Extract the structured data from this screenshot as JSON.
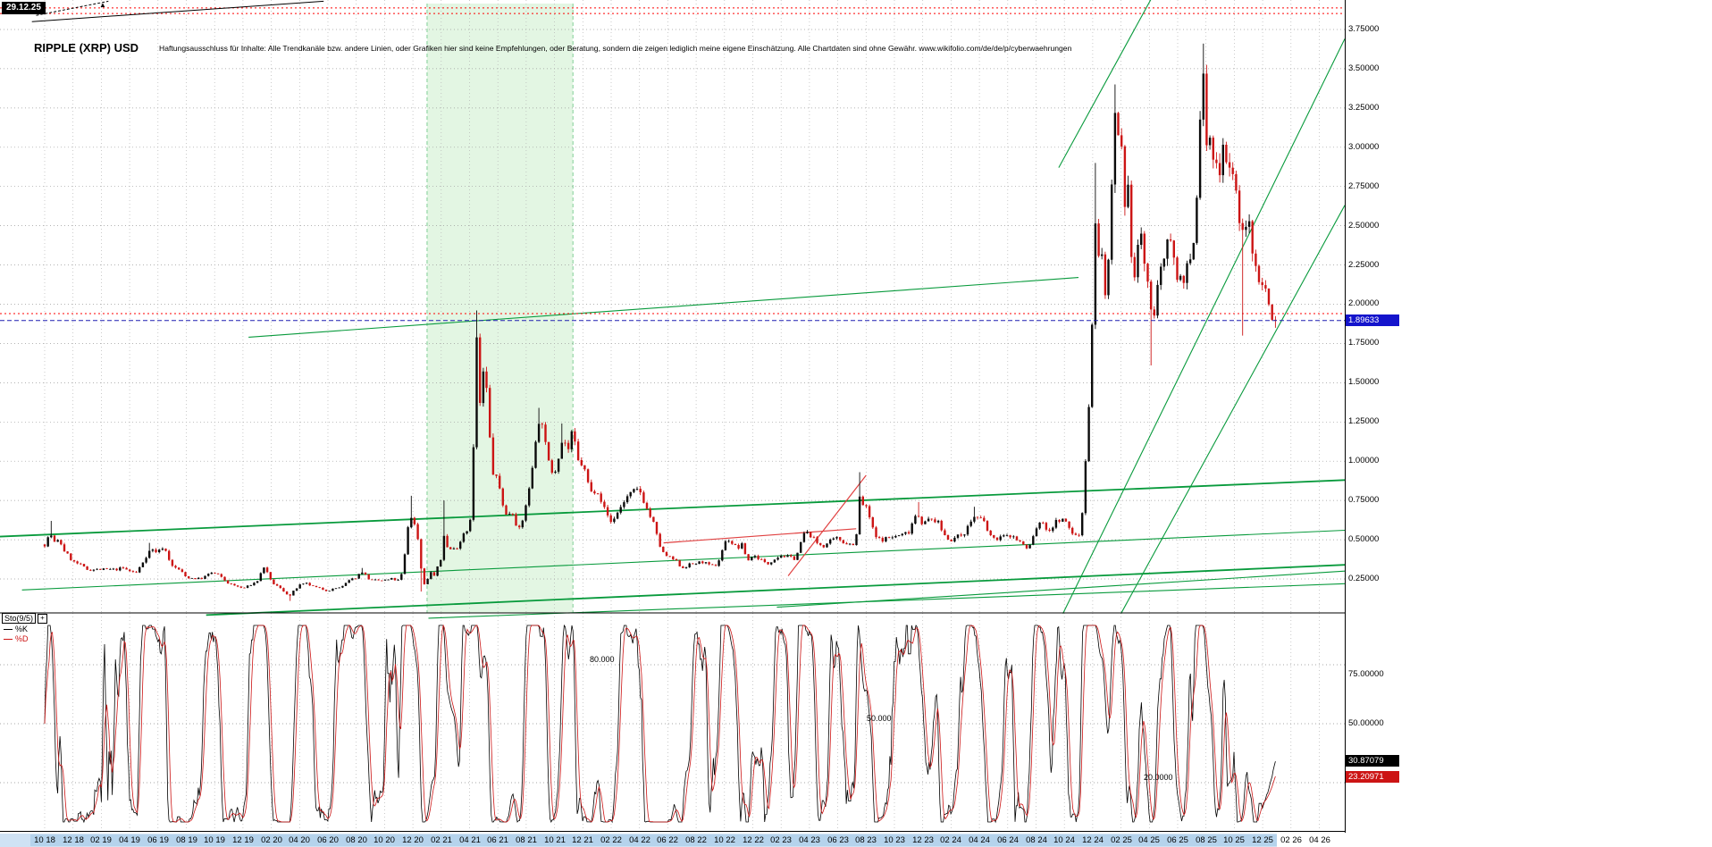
{
  "header": {
    "date_box": "29.12.25",
    "title": "RIPPLE (XRP) USD",
    "disclaimer": "Haftungsausschluss für Inhalte: Alle Trendkanäle bzw. andere Linien, oder Grafiken hier sind keine Empfehlungen, oder Beratung, sondern die zeigen lediglich meine eigene Einschätzung. Alle Chartdaten sind ohne Gewähr.  www.wikifolio.com/de/de/p/cyberwaehrungen"
  },
  "price_axis": {
    "current": "1.89633"
  },
  "indicator_panel": {
    "name": "Sto(9/5)",
    "expand_button": "+",
    "k_label": "%K",
    "d_label": "%D",
    "k_value": "30.87079",
    "d_value": "23.20971",
    "level_labels": [
      "80.000",
      "50.000",
      "20.0000"
    ],
    "right_labels": [
      "75.00000",
      "50.00000"
    ]
  },
  "chart_data": {
    "type": "candlestick",
    "title": "RIPPLE (XRP) USD",
    "x_unit": "months since Oct 2018, ticks every 2 months",
    "x_ticks": [
      "10 18",
      "12 18",
      "02 19",
      "04 19",
      "06 19",
      "08 19",
      "10 19",
      "12 19",
      "02 20",
      "04 20",
      "06 20",
      "08 20",
      "10 20",
      "12 20",
      "02 21",
      "04 21",
      "06 21",
      "08 21",
      "10 21",
      "12 21",
      "02 22",
      "04 22",
      "06 22",
      "08 22",
      "10 22",
      "12 22",
      "02 23",
      "04 23",
      "06 23",
      "08 23",
      "10 23",
      "12 23",
      "02 24",
      "04 24",
      "06 24",
      "08 24",
      "10 24",
      "12 24",
      "02 25",
      "04 25",
      "06 25",
      "08 25",
      "10 25",
      "12 25",
      "02 26",
      "04 26"
    ],
    "future_ticks_from_index": 44,
    "y_ticks": [
      3.75,
      3.5,
      3.25,
      3.0,
      2.75,
      2.5,
      2.25,
      2.0,
      1.75,
      1.5,
      1.25,
      1.0,
      0.75,
      0.5,
      0.25
    ],
    "ylim": [
      0,
      3.94
    ],
    "current_price": 1.89633,
    "current_date": "29.12.25",
    "price_anchors": [
      [
        0,
        0.47
      ],
      [
        0.4,
        0.54
      ],
      [
        0.8,
        0.46
      ],
      [
        1,
        0.51
      ],
      [
        1.3,
        0.44
      ],
      [
        2,
        0.36
      ],
      [
        2.5,
        0.34
      ],
      [
        3,
        0.31
      ],
      [
        4,
        0.31
      ],
      [
        5,
        0.31
      ],
      [
        5.5,
        0.32
      ],
      [
        6,
        0.3
      ],
      [
        6.5,
        0.29
      ],
      [
        7.2,
        0.4
      ],
      [
        7.5,
        0.44
      ],
      [
        8,
        0.42
      ],
      [
        8.4,
        0.46
      ],
      [
        9,
        0.33
      ],
      [
        9.5,
        0.31
      ],
      [
        10,
        0.26
      ],
      [
        11,
        0.25
      ],
      [
        11.8,
        0.29
      ],
      [
        12.2,
        0.28
      ],
      [
        13,
        0.22
      ],
      [
        14,
        0.19
      ],
      [
        14.5,
        0.21
      ],
      [
        15,
        0.235
      ],
      [
        15.5,
        0.33
      ],
      [
        16,
        0.23
      ],
      [
        16.5,
        0.2
      ],
      [
        17.3,
        0.14
      ],
      [
        17.6,
        0.175
      ],
      [
        18,
        0.21
      ],
      [
        18.5,
        0.22
      ],
      [
        19,
        0.2
      ],
      [
        20,
        0.175
      ],
      [
        20.5,
        0.19
      ],
      [
        21,
        0.2
      ],
      [
        21.5,
        0.24
      ],
      [
        22,
        0.26
      ],
      [
        22.4,
        0.3
      ],
      [
        23,
        0.24
      ],
      [
        24,
        0.24
      ],
      [
        24.5,
        0.25
      ],
      [
        25,
        0.24
      ],
      [
        25.3,
        0.3
      ],
      [
        25.6,
        0.55
      ],
      [
        25.8,
        0.67
      ],
      [
        26,
        0.62
      ],
      [
        26.3,
        0.55
      ],
      [
        26.6,
        0.3
      ],
      [
        26.8,
        0.22
      ],
      [
        27,
        0.24
      ],
      [
        27.3,
        0.3
      ],
      [
        27.5,
        0.27
      ],
      [
        28,
        0.38
      ],
      [
        28.1,
        0.6
      ],
      [
        28.3,
        0.46
      ],
      [
        28.6,
        0.44
      ],
      [
        29,
        0.44
      ],
      [
        29.3,
        0.48
      ],
      [
        29.6,
        0.55
      ],
      [
        30,
        0.57
      ],
      [
        30.2,
        0.88
      ],
      [
        30.4,
        1.4
      ],
      [
        30.5,
        1.8
      ],
      [
        30.7,
        1.3
      ],
      [
        30.9,
        1.57
      ],
      [
        31,
        1.56
      ],
      [
        31.2,
        1.45
      ],
      [
        31.5,
        1.05
      ],
      [
        31.7,
        0.9
      ],
      [
        32,
        0.88
      ],
      [
        32.3,
        0.75
      ],
      [
        32.6,
        0.65
      ],
      [
        33,
        0.69
      ],
      [
        33.3,
        0.6
      ],
      [
        33.6,
        0.55
      ],
      [
        34,
        0.74
      ],
      [
        34.3,
        0.85
      ],
      [
        34.6,
        1.1
      ],
      [
        34.8,
        1.25
      ],
      [
        35,
        1.19
      ],
      [
        35.2,
        1.3
      ],
      [
        35.4,
        1.05
      ],
      [
        35.7,
        0.95
      ],
      [
        36,
        0.93
      ],
      [
        36.3,
        1.05
      ],
      [
        36.6,
        1.15
      ],
      [
        37,
        1.07
      ],
      [
        37.3,
        1.2
      ],
      [
        37.6,
        1.0
      ],
      [
        38,
        0.98
      ],
      [
        38.3,
        0.88
      ],
      [
        38.6,
        0.8
      ],
      [
        39,
        0.83
      ],
      [
        39.5,
        0.7
      ],
      [
        40,
        0.61
      ],
      [
        40.5,
        0.68
      ],
      [
        41,
        0.76
      ],
      [
        41.5,
        0.8
      ],
      [
        42,
        0.82
      ],
      [
        42.5,
        0.7
      ],
      [
        43,
        0.6
      ],
      [
        43.3,
        0.5
      ],
      [
        43.6,
        0.42
      ],
      [
        44,
        0.39
      ],
      [
        44.5,
        0.37
      ],
      [
        45,
        0.32
      ],
      [
        45.5,
        0.34
      ],
      [
        46,
        0.35
      ],
      [
        46.5,
        0.36
      ],
      [
        47,
        0.33
      ],
      [
        47.5,
        0.34
      ],
      [
        48,
        0.48
      ],
      [
        48.3,
        0.5
      ],
      [
        48.7,
        0.46
      ],
      [
        49,
        0.45
      ],
      [
        49.3,
        0.47
      ],
      [
        49.6,
        0.36
      ],
      [
        50,
        0.4
      ],
      [
        50.5,
        0.38
      ],
      [
        51,
        0.34
      ],
      [
        51.5,
        0.38
      ],
      [
        52,
        0.4
      ],
      [
        52.5,
        0.39
      ],
      [
        53,
        0.38
      ],
      [
        53.3,
        0.45
      ],
      [
        53.6,
        0.54
      ],
      [
        54,
        0.54
      ],
      [
        54.5,
        0.48
      ],
      [
        55,
        0.46
      ],
      [
        55.5,
        0.49
      ],
      [
        56,
        0.51
      ],
      [
        56.5,
        0.48
      ],
      [
        57,
        0.47
      ],
      [
        57.3,
        0.49
      ],
      [
        57.45,
        0.82
      ],
      [
        57.6,
        0.74
      ],
      [
        58,
        0.7
      ],
      [
        58.3,
        0.63
      ],
      [
        58.6,
        0.52
      ],
      [
        59,
        0.5
      ],
      [
        59.5,
        0.51
      ],
      [
        60,
        0.52
      ],
      [
        60.5,
        0.53
      ],
      [
        61,
        0.55
      ],
      [
        61.3,
        0.62
      ],
      [
        61.6,
        0.68
      ],
      [
        62,
        0.6
      ],
      [
        62.5,
        0.63
      ],
      [
        63,
        0.62
      ],
      [
        63.3,
        0.57
      ],
      [
        63.6,
        0.52
      ],
      [
        64,
        0.5
      ],
      [
        64.5,
        0.52
      ],
      [
        65,
        0.55
      ],
      [
        65.3,
        0.6
      ],
      [
        65.6,
        0.65
      ],
      [
        66,
        0.63
      ],
      [
        66.3,
        0.62
      ],
      [
        66.6,
        0.55
      ],
      [
        67,
        0.5
      ],
      [
        67.5,
        0.52
      ],
      [
        68,
        0.52
      ],
      [
        68.3,
        0.53
      ],
      [
        68.6,
        0.5
      ],
      [
        69,
        0.48
      ],
      [
        69.3,
        0.44
      ],
      [
        69.6,
        0.47
      ],
      [
        70,
        0.57
      ],
      [
        70.3,
        0.62
      ],
      [
        70.6,
        0.58
      ],
      [
        71,
        0.56
      ],
      [
        71.3,
        0.6
      ],
      [
        71.6,
        0.63
      ],
      [
        72,
        0.62
      ],
      [
        72.3,
        0.58
      ],
      [
        72.6,
        0.54
      ],
      [
        73,
        0.51
      ],
      [
        73.3,
        0.7
      ],
      [
        73.6,
        1.2
      ],
      [
        73.8,
        1.45
      ],
      [
        74,
        1.95
      ],
      [
        74.2,
        2.6
      ],
      [
        74.4,
        2.3
      ],
      [
        74.6,
        2.35
      ],
      [
        74.8,
        2.1
      ],
      [
        75,
        2.08
      ],
      [
        75.3,
        2.55
      ],
      [
        75.5,
        3.2
      ],
      [
        75.7,
        3.05
      ],
      [
        76,
        3.0
      ],
      [
        76.3,
        2.5
      ],
      [
        76.5,
        2.7
      ],
      [
        76.8,
        2.25
      ],
      [
        77,
        2.15
      ],
      [
        77.3,
        2.5
      ],
      [
        77.6,
        2.3
      ],
      [
        78,
        2.08
      ],
      [
        78.2,
        1.8
      ],
      [
        78.5,
        2.15
      ],
      [
        79,
        2.2
      ],
      [
        79.4,
        2.55
      ],
      [
        79.7,
        2.3
      ],
      [
        80,
        2.15
      ],
      [
        80.5,
        2.2
      ],
      [
        81,
        2.25
      ],
      [
        81.3,
        2.55
      ],
      [
        81.6,
        3.25
      ],
      [
        81.8,
        3.45
      ],
      [
        82,
        3.05
      ],
      [
        82.3,
        3.0
      ],
      [
        82.6,
        2.9
      ],
      [
        82.9,
        2.85
      ],
      [
        83.2,
        3.05
      ],
      [
        83.5,
        2.9
      ],
      [
        83.8,
        2.85
      ],
      [
        84,
        2.9
      ],
      [
        84.3,
        2.5
      ],
      [
        84.5,
        2.4
      ],
      [
        84.8,
        2.55
      ],
      [
        85,
        2.5
      ],
      [
        85.3,
        2.3
      ],
      [
        85.6,
        2.2
      ],
      [
        86,
        2.15
      ],
      [
        86.3,
        2.05
      ],
      [
        86.6,
        1.95
      ],
      [
        86.9,
        1.89633
      ]
    ],
    "spike_wicks": [
      [
        0.4,
        0.62
      ],
      [
        7.5,
        0.48
      ],
      [
        17.3,
        0.11
      ],
      [
        22.4,
        0.32
      ],
      [
        25.8,
        0.78
      ],
      [
        26.6,
        0.17
      ],
      [
        28.1,
        0.75
      ],
      [
        30.5,
        1.96
      ],
      [
        31.2,
        1.6
      ],
      [
        34.8,
        1.34
      ],
      [
        36.6,
        1.24
      ],
      [
        57.45,
        0.93
      ],
      [
        61.6,
        0.74
      ],
      [
        65.6,
        0.71
      ],
      [
        74.2,
        2.9
      ],
      [
        75.5,
        3.4
      ],
      [
        78.2,
        1.61
      ],
      [
        81.8,
        3.66
      ],
      [
        84.5,
        1.8
      ],
      [
        86.9,
        1.85
      ]
    ],
    "annotations": {
      "shaded_region_m": [
        27,
        37.3
      ],
      "green_lines_mp": [
        [
          -3.2,
          0.52,
          91.8,
          0.88
        ],
        [
          -1.6,
          0.18,
          91.8,
          0.56
        ],
        [
          11.4,
          0.02,
          91.8,
          0.34
        ],
        [
          27.1,
          0.0,
          91.8,
          0.22
        ],
        [
          51.7,
          0.07,
          91.8,
          0.3
        ],
        [
          14.4,
          1.79,
          73.0,
          2.17
        ],
        [
          71.6,
          2.87,
          78.1,
          3.94
        ],
        [
          71.9,
          0.03,
          91.8,
          3.69
        ],
        [
          76.0,
          0.03,
          91.8,
          2.63
        ]
      ],
      "green_thick_indexes": [
        0,
        2
      ],
      "red_lines_mp": [
        [
          43.7,
          0.48,
          57.3,
          0.57
        ],
        [
          52.5,
          0.27,
          58.0,
          0.91
        ]
      ],
      "red_hlines_p": [
        3.887,
        3.852,
        1.94
      ],
      "black_line_mp": [
        -0.9,
        3.8,
        19.7,
        3.93
      ],
      "black_dashed_line_mp": [
        -0.6,
        3.84,
        4.5,
        3.93
      ],
      "current_price_line_p": 1.89633
    },
    "indicator": {
      "type": "stochastic",
      "name": "Sto(9/5)",
      "k_current": 30.87079,
      "d_current": 23.20971,
      "levels": [
        80,
        50,
        20
      ],
      "range": [
        0,
        100
      ]
    }
  }
}
